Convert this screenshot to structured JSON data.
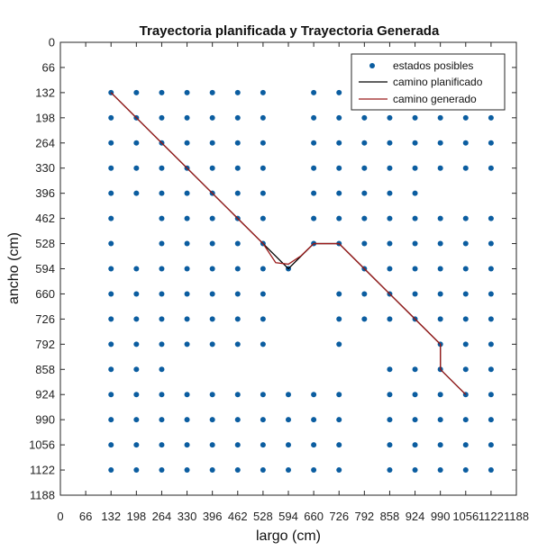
{
  "chart_data": {
    "type": "scatter",
    "title": "Trayectoria planificada y Trayectoria Generada",
    "xlabel": "largo (cm)",
    "ylabel": "ancho (cm)",
    "xlim": [
      0,
      1188
    ],
    "ylim": [
      0,
      1188
    ],
    "y_reversed": true,
    "xticks": [
      "0",
      "66",
      "132",
      "198",
      "264",
      "330",
      "396",
      "462",
      "528",
      "594",
      "660",
      "726",
      "792",
      "858",
      "924",
      "990",
      "1056",
      "1122",
      "1188"
    ],
    "yticks": [
      "0",
      "66",
      "132",
      "198",
      "264",
      "330",
      "396",
      "462",
      "528",
      "594",
      "660",
      "726",
      "792",
      "858",
      "924",
      "990",
      "1056",
      "1122",
      "1188"
    ],
    "grid": false,
    "legend_position": "top-right",
    "colors": {
      "points": "#0b5da0",
      "planned": "#000000",
      "generated": "#9b1b1b"
    },
    "series": [
      {
        "name": "estados posibles",
        "kind": "points",
        "rows": [
          {
            "y": 132,
            "x": [
              132,
              198,
              264,
              330,
              396,
              462,
              528,
              660,
              726
            ]
          },
          {
            "y": 198,
            "x": [
              132,
              198,
              264,
              330,
              396,
              462,
              528,
              660,
              726,
              792,
              858,
              924,
              990,
              1056,
              1122
            ]
          },
          {
            "y": 264,
            "x": [
              132,
              198,
              264,
              330,
              396,
              462,
              528,
              660,
              726,
              792,
              858,
              924,
              990,
              1056,
              1122
            ]
          },
          {
            "y": 330,
            "x": [
              132,
              198,
              264,
              330,
              396,
              462,
              528,
              660,
              726,
              792,
              858,
              924,
              990,
              1056,
              1122
            ]
          },
          {
            "y": 396,
            "x": [
              132,
              198,
              264,
              330,
              396,
              462,
              528,
              660,
              726,
              792,
              858,
              924
            ]
          },
          {
            "y": 462,
            "x": [
              132,
              264,
              330,
              396,
              462,
              528,
              660,
              726,
              792,
              858,
              924,
              990,
              1056,
              1122
            ]
          },
          {
            "y": 528,
            "x": [
              132,
              264,
              330,
              396,
              462,
              528,
              660,
              726,
              792,
              858,
              924,
              990,
              1056,
              1122
            ]
          },
          {
            "y": 594,
            "x": [
              132,
              198,
              264,
              330,
              396,
              462,
              528,
              594,
              792,
              858,
              924,
              990,
              1056,
              1122
            ]
          },
          {
            "y": 660,
            "x": [
              132,
              198,
              264,
              330,
              396,
              462,
              528,
              726,
              792,
              858,
              924,
              990,
              1056,
              1122
            ]
          },
          {
            "y": 726,
            "x": [
              132,
              198,
              264,
              330,
              396,
              462,
              528,
              726,
              792,
              858,
              924,
              990,
              1056,
              1122
            ]
          },
          {
            "y": 792,
            "x": [
              132,
              198,
              264,
              330,
              396,
              462,
              528,
              726,
              990,
              1056,
              1122
            ]
          },
          {
            "y": 858,
            "x": [
              132,
              198,
              264,
              858,
              924,
              990,
              1056,
              1122
            ]
          },
          {
            "y": 924,
            "x": [
              132,
              198,
              264,
              330,
              396,
              462,
              528,
              594,
              660,
              726,
              858,
              924,
              990,
              1056,
              1122
            ]
          },
          {
            "y": 990,
            "x": [
              132,
              198,
              264,
              330,
              396,
              462,
              528,
              594,
              660,
              726,
              858,
              924,
              990,
              1056,
              1122
            ]
          },
          {
            "y": 1056,
            "x": [
              132,
              198,
              264,
              330,
              396,
              462,
              528,
              594,
              660,
              726,
              858,
              924,
              990,
              1056,
              1122
            ]
          },
          {
            "y": 1122,
            "x": [
              132,
              198,
              264,
              330,
              396,
              462,
              528,
              594,
              660,
              726,
              858,
              924,
              990,
              1056,
              1122
            ]
          }
        ]
      },
      {
        "name": "camino planificado",
        "kind": "line",
        "x": [
          132,
          198,
          264,
          330,
          396,
          462,
          528,
          594,
          660,
          726,
          792,
          858,
          924,
          990,
          990,
          1056
        ],
        "y": [
          132,
          198,
          264,
          330,
          396,
          462,
          528,
          594,
          528,
          528,
          594,
          660,
          726,
          792,
          858,
          924
        ]
      },
      {
        "name": "camino generado",
        "kind": "line",
        "x": [
          132,
          198,
          264,
          330,
          396,
          462,
          528,
          561,
          594,
          627,
          660,
          726,
          792,
          858,
          924,
          990,
          990,
          1056
        ],
        "y": [
          132,
          198,
          264,
          330,
          396,
          462,
          528,
          578,
          582,
          560,
          528,
          528,
          594,
          660,
          726,
          792,
          858,
          924
        ]
      }
    ]
  }
}
